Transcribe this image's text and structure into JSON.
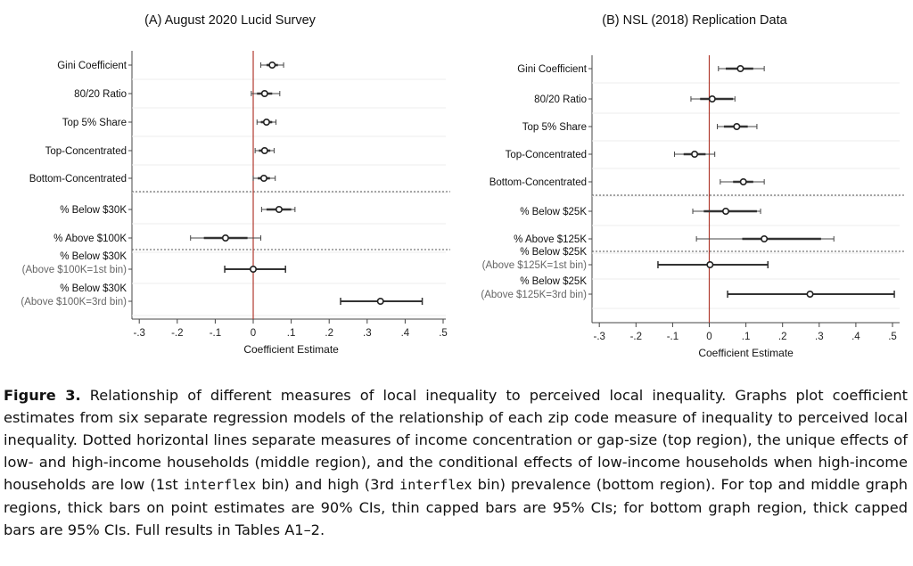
{
  "chart_data": [
    {
      "type": "scatter",
      "title": "(A) August 2020 Lucid Survey",
      "xlabel": "Coefficient Estimate",
      "ylabel": "",
      "xlim": [
        -0.3,
        0.5
      ],
      "xticks": [
        -0.3,
        -0.2,
        -0.1,
        0,
        0.1,
        0.2,
        0.3,
        0.4,
        0.5
      ],
      "xtick_labels": [
        "-.3",
        "-.2",
        "-.1",
        "0",
        ".1",
        ".2",
        ".3",
        ".4",
        ".5"
      ],
      "reference_line": 0,
      "region_separators_after_rows": [
        4,
        6
      ],
      "rows": [
        {
          "label": [
            "Gini Coefficient"
          ],
          "estimate": 0.05,
          "ci90": [
            0.035,
            0.065
          ],
          "ci95": [
            0.02,
            0.08
          ],
          "style": "thick-and-capped"
        },
        {
          "label": [
            "80/20 Ratio"
          ],
          "estimate": 0.03,
          "ci90": [
            0.01,
            0.05
          ],
          "ci95": [
            -0.005,
            0.07
          ],
          "style": "thick-and-capped"
        },
        {
          "label": [
            "Top 5% Share"
          ],
          "estimate": 0.035,
          "ci90": [
            0.02,
            0.05
          ],
          "ci95": [
            0.01,
            0.06
          ],
          "style": "thick-and-capped"
        },
        {
          "label": [
            "Top-Concentrated"
          ],
          "estimate": 0.03,
          "ci90": [
            0.015,
            0.045
          ],
          "ci95": [
            0.005,
            0.055
          ],
          "style": "thick-and-capped"
        },
        {
          "label": [
            "Bottom-Concentrated"
          ],
          "estimate": 0.028,
          "ci90": [
            0.012,
            0.044
          ],
          "ci95": [
            0.0,
            0.058
          ],
          "style": "thick-and-capped"
        },
        {
          "label": [
            "% Below $30K"
          ],
          "estimate": 0.068,
          "ci90": [
            0.035,
            0.1
          ],
          "ci95": [
            0.022,
            0.11
          ],
          "style": "thick-and-capped"
        },
        {
          "label": [
            "% Above $100K"
          ],
          "estimate": -0.073,
          "ci90": [
            -0.13,
            -0.015
          ],
          "ci95": [
            -0.165,
            0.02
          ],
          "style": "thick-and-capped"
        },
        {
          "label": [
            "% Below $30K",
            "(Above $100K=1st bin)"
          ],
          "estimate": 0.0,
          "ci95": [
            -0.075,
            0.085
          ],
          "style": "thick"
        },
        {
          "label": [
            "% Below $30K",
            "(Above $100K=3rd bin)"
          ],
          "estimate": 0.335,
          "ci95": [
            0.23,
            0.445
          ],
          "style": "thick"
        }
      ]
    },
    {
      "type": "scatter",
      "title": "(B) NSL (2018) Replication Data",
      "xlabel": "Coefficient Estimate",
      "ylabel": "",
      "xlim": [
        -0.3,
        0.5
      ],
      "xticks": [
        -0.3,
        -0.2,
        -0.1,
        0,
        0.1,
        0.2,
        0.3,
        0.4,
        0.5
      ],
      "xtick_labels": [
        "-.3",
        "-.2",
        "-.1",
        "0",
        ".1",
        ".2",
        ".3",
        ".4",
        ".5"
      ],
      "reference_line": 0,
      "region_separators_after_rows": [
        4,
        6
      ],
      "rows": [
        {
          "label": [
            "Gini Coefficient"
          ],
          "estimate": 0.085,
          "ci90": [
            0.045,
            0.12
          ],
          "ci95": [
            0.025,
            0.15
          ],
          "style": "thick-and-capped"
        },
        {
          "label": [
            "80/20 Ratio"
          ],
          "estimate": 0.008,
          "ci90": [
            -0.025,
            0.065
          ],
          "ci95": [
            -0.05,
            0.07
          ],
          "style": "thick-and-capped"
        },
        {
          "label": [
            "Top 5% Share"
          ],
          "estimate": 0.075,
          "ci90": [
            0.04,
            0.105
          ],
          "ci95": [
            0.022,
            0.13
          ],
          "style": "thick-and-capped"
        },
        {
          "label": [
            "Top-Concentrated"
          ],
          "estimate": -0.04,
          "ci90": [
            -0.07,
            -0.01
          ],
          "ci95": [
            -0.095,
            0.015
          ],
          "style": "thick-and-capped"
        },
        {
          "label": [
            "Bottom-Concentrated"
          ],
          "estimate": 0.093,
          "ci90": [
            0.065,
            0.12
          ],
          "ci95": [
            0.03,
            0.15
          ],
          "style": "thick-and-capped"
        },
        {
          "label": [
            "% Below $25K"
          ],
          "estimate": 0.045,
          "ci90": [
            -0.015,
            0.13
          ],
          "ci95": [
            -0.045,
            0.14
          ],
          "style": "thick-and-capped"
        },
        {
          "label": [
            "% Above $125K"
          ],
          "estimate": 0.15,
          "ci90": [
            0.09,
            0.305
          ],
          "ci95": [
            -0.035,
            0.34
          ],
          "style": "thick-and-capped"
        },
        {
          "label": [
            "% Below $25K",
            "(Above $125K=1st bin)"
          ],
          "estimate": 0.002,
          "ci95": [
            -0.14,
            0.16
          ],
          "style": "thick"
        },
        {
          "label": [
            "% Below $25K",
            "(Above $125K=3rd bin)"
          ],
          "estimate": 0.275,
          "ci95": [
            0.05,
            0.505
          ],
          "style": "thick"
        }
      ]
    }
  ],
  "caption": {
    "figure_label": "Figure 3.",
    "text_a": "Relationship of different measures of local inequality to perceived local inequality. Graphs plot coefficient estimates from six separate regression models of the relationship of each zip code measure of inequality to perceived local inequality. Dotted horizontal lines separate measures of income concentration or gap-size (top region), the unique effects of low- and high-income households (middle region), and the conditional effects of low-income households when high-income households are low (1st ",
    "mono_1": "interflex",
    "text_b": " bin) and high (3rd ",
    "mono_2": "interflex",
    "text_c": " bin) prevalence (bottom region). For top and middle graph regions, thick bars on point estimates are 90% CIs, thin capped bars are 95% CIs; for bottom graph region, thick capped bars are 95% CIs. Full results in Tables A1–2."
  }
}
